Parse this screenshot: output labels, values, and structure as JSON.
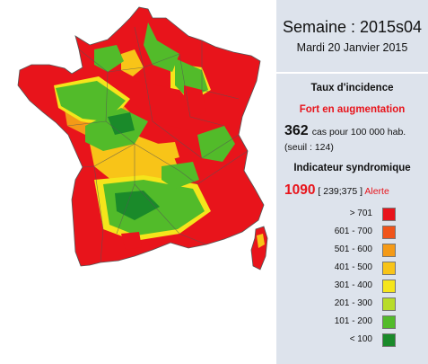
{
  "header": {
    "week": "Semaine : 2015s04",
    "date": "Mardi 20 Janvier 2015"
  },
  "incidence": {
    "title": "Taux d'incidence",
    "trend": "Fort en augmentation",
    "cases_value": "362",
    "cases_unit": "cas pour 100 000 hab.",
    "threshold": "(seuil : 124)"
  },
  "syndromic": {
    "title": "Indicateur syndromique",
    "value": "1090",
    "range": "[ 239;375 ]",
    "status": "Alerte"
  },
  "legend": [
    {
      "label": "> 701",
      "color": "#e8141b"
    },
    {
      "label": "601 - 700",
      "color": "#f0541a"
    },
    {
      "label": "501 - 600",
      "color": "#f49a17"
    },
    {
      "label": "401 - 500",
      "color": "#f8c418"
    },
    {
      "label": "301 - 400",
      "color": "#f5e51b"
    },
    {
      "label": "201 - 300",
      "color": "#b8dc29"
    },
    {
      "label": "101 - 200",
      "color": "#52bb2a"
    },
    {
      "label": "< 100",
      "color": "#1a8a2a"
    }
  ]
}
